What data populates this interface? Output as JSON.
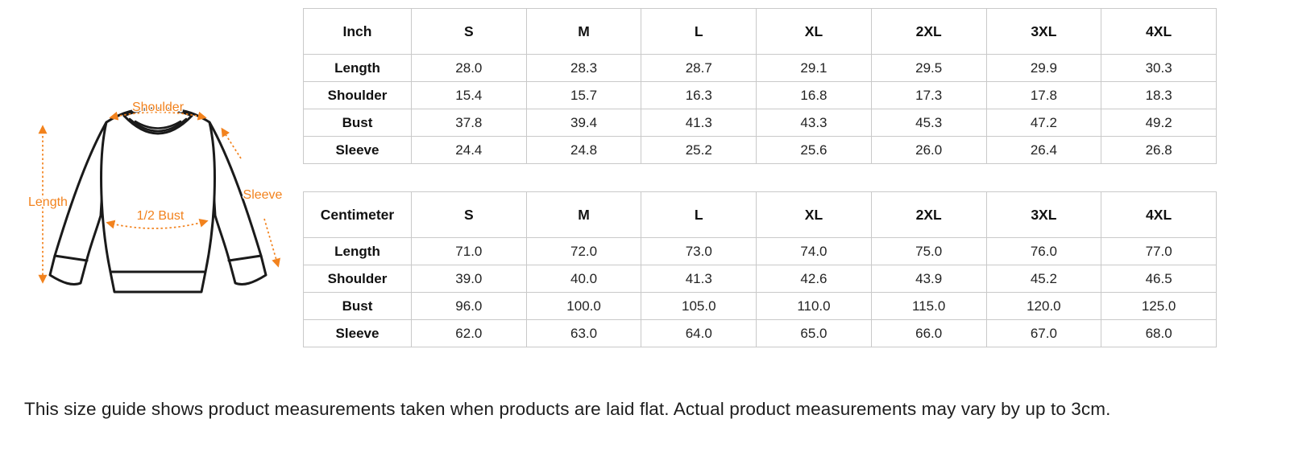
{
  "colors": {
    "annotation_orange": "#F2821D",
    "garment_outline": "#1a1a1a",
    "table_border": "#c9c9c9",
    "text": "#1f1f1f"
  },
  "diagram": {
    "description": "line drawing of a crew-neck sweatshirt with measurement arrows",
    "labels": {
      "shoulder": "Shoulder",
      "length": "Length",
      "sleeve": "Sleeve",
      "half_bust": "1/2 Bust"
    }
  },
  "tables": [
    {
      "unit": "Inch",
      "sizes": [
        "S",
        "M",
        "L",
        "XL",
        "2XL",
        "3XL",
        "4XL"
      ],
      "rows": [
        {
          "label": "Length",
          "values": [
            "28.0",
            "28.3",
            "28.7",
            "29.1",
            "29.5",
            "29.9",
            "30.3"
          ]
        },
        {
          "label": "Shoulder",
          "values": [
            "15.4",
            "15.7",
            "16.3",
            "16.8",
            "17.3",
            "17.8",
            "18.3"
          ]
        },
        {
          "label": "Bust",
          "values": [
            "37.8",
            "39.4",
            "41.3",
            "43.3",
            "45.3",
            "47.2",
            "49.2"
          ]
        },
        {
          "label": "Sleeve",
          "values": [
            "24.4",
            "24.8",
            "25.2",
            "25.6",
            "26.0",
            "26.4",
            "26.8"
          ]
        }
      ]
    },
    {
      "unit": "Centimeter",
      "sizes": [
        "S",
        "M",
        "L",
        "XL",
        "2XL",
        "3XL",
        "4XL"
      ],
      "rows": [
        {
          "label": "Length",
          "values": [
            "71.0",
            "72.0",
            "73.0",
            "74.0",
            "75.0",
            "76.0",
            "77.0"
          ]
        },
        {
          "label": "Shoulder",
          "values": [
            "39.0",
            "40.0",
            "41.3",
            "42.6",
            "43.9",
            "45.2",
            "46.5"
          ]
        },
        {
          "label": "Bust",
          "values": [
            "96.0",
            "100.0",
            "105.0",
            "110.0",
            "115.0",
            "120.0",
            "125.0"
          ]
        },
        {
          "label": "Sleeve",
          "values": [
            "62.0",
            "63.0",
            "64.0",
            "65.0",
            "66.0",
            "67.0",
            "68.0"
          ]
        }
      ]
    }
  ],
  "footnote": "This size guide shows product measurements taken when products are laid flat. Actual product measurements may vary by up to 3cm."
}
